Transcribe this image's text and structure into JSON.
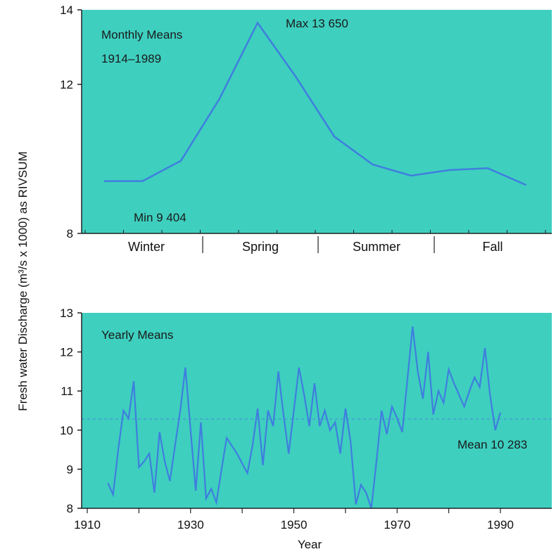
{
  "colors": {
    "panel": "#3ecfbf",
    "line": "#3f7ede",
    "axis": "#222222",
    "meanline": "#4a8bd6"
  },
  "ylabel": "Fresh water Discharge (m³/s x 1000) as RIVSUM",
  "chart_data": [
    {
      "type": "line",
      "title": "Monthly Means",
      "subtitle": "1914–1989",
      "ylim": [
        8,
        14
      ],
      "yticks": [
        "8",
        "12",
        "14"
      ],
      "season_labels": [
        "Winter",
        "Spring",
        "Summer",
        "Fall"
      ],
      "months": [
        1,
        2,
        3,
        4,
        5,
        6,
        7,
        8,
        9,
        10,
        11,
        12
      ],
      "values": [
        9.404,
        9.404,
        9.95,
        11.6,
        13.65,
        12.2,
        10.6,
        9.85,
        9.55,
        9.7,
        9.75,
        9.3
      ],
      "annotations": {
        "max": "Max 13 650",
        "min": "Min 9 404"
      }
    },
    {
      "type": "line",
      "title": "Yearly Means",
      "xlabel": "Year",
      "ylim": [
        8,
        13
      ],
      "xlim": [
        1910,
        2000
      ],
      "xticks": [
        "1910",
        "1930",
        "1950",
        "1970",
        "1990"
      ],
      "yticks": [
        "8",
        "9",
        "10",
        "11",
        "12",
        "13"
      ],
      "mean": 10.283,
      "mean_label": "Mean 10 283",
      "x": [
        1914,
        1915,
        1916,
        1917,
        1918,
        1919,
        1920,
        1921,
        1922,
        1923,
        1924,
        1925,
        1926,
        1927,
        1928,
        1929,
        1930,
        1931,
        1932,
        1933,
        1934,
        1935,
        1936,
        1937,
        1938,
        1939,
        1940,
        1941,
        1942,
        1943,
        1944,
        1945,
        1946,
        1947,
        1948,
        1949,
        1950,
        1951,
        1952,
        1953,
        1954,
        1955,
        1956,
        1957,
        1958,
        1959,
        1960,
        1961,
        1962,
        1963,
        1964,
        1965,
        1966,
        1967,
        1968,
        1969,
        1970,
        1971,
        1972,
        1973,
        1974,
        1975,
        1976,
        1977,
        1978,
        1979,
        1980,
        1981,
        1982,
        1983,
        1984,
        1985,
        1986,
        1987,
        1988,
        1989,
        1990
      ],
      "y": [
        8.65,
        8.35,
        9.5,
        10.5,
        10.3,
        11.25,
        9.05,
        9.2,
        9.4,
        8.4,
        9.95,
        9.2,
        8.7,
        9.6,
        10.5,
        11.6,
        10.0,
        8.45,
        10.2,
        8.25,
        8.5,
        8.15,
        9.0,
        9.8,
        9.6,
        9.4,
        9.15,
        8.9,
        9.6,
        10.55,
        9.1,
        10.5,
        10.1,
        11.5,
        10.4,
        9.4,
        10.5,
        11.6,
        10.9,
        10.1,
        11.2,
        10.1,
        10.5,
        10.0,
        10.2,
        9.4,
        10.55,
        9.7,
        8.1,
        8.6,
        8.4,
        8.0,
        9.2,
        10.5,
        9.9,
        10.6,
        10.3,
        9.95,
        11.3,
        12.65,
        11.5,
        10.8,
        12.0,
        10.4,
        11.0,
        10.7,
        11.55,
        11.2,
        10.9,
        10.6,
        11.0,
        11.35,
        11.1,
        12.1,
        10.9,
        10.0,
        10.45
      ]
    }
  ]
}
